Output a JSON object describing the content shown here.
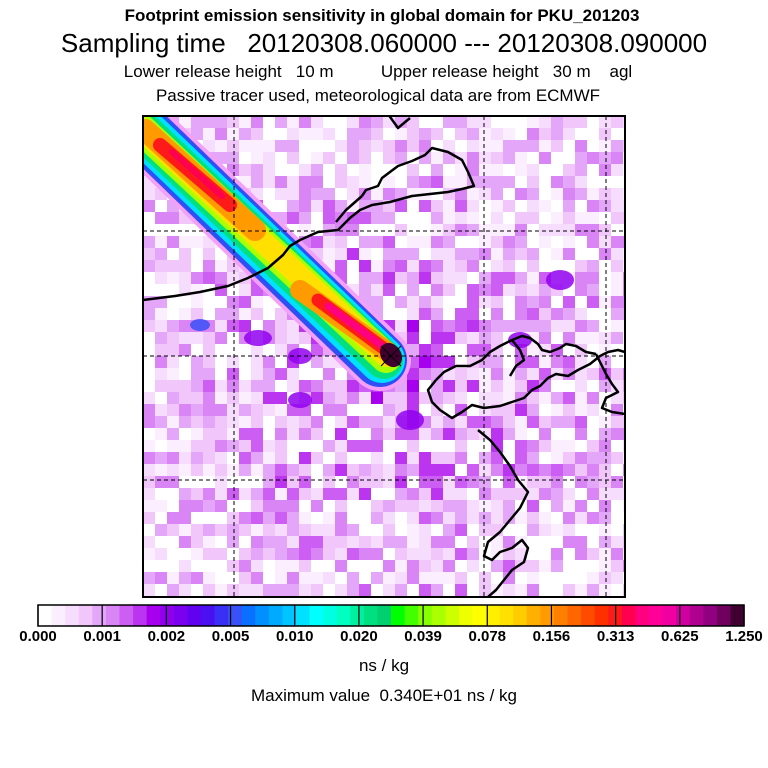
{
  "header": {
    "title": "Footprint emission sensitivity in global domain for PKU_201203",
    "sampling": "Sampling time   20120308.060000 --- 20120308.090000",
    "release": "Lower release height   10 m          Upper release height   30 m    agl",
    "tracer": "Passive tracer used, meteorological data are from ECMWF"
  },
  "chart_data": {
    "type": "heatmap",
    "title": "Footprint emission sensitivity in global domain for PKU_201203",
    "unit": "ns / kg",
    "max_value_text": "Maximum value  0.340E+01 ns / kg",
    "max_value": 3.4,
    "colorbar_ticks": [
      "0.000",
      "0.001",
      "0.002",
      "0.005",
      "0.010",
      "0.020",
      "0.039",
      "0.078",
      "0.156",
      "0.313",
      "0.625",
      "1.250"
    ],
    "colorbar_colors": [
      "#ffffff",
      "#fbeefe",
      "#f7ddfd",
      "#f0c6fb",
      "#e3a6f8",
      "#d985f5",
      "#cc5ef3",
      "#bb35f1",
      "#a600ee",
      "#9000ee",
      "#7a00ef",
      "#6200f0",
      "#4b10f2",
      "#3a30f5",
      "#3a50f8",
      "#0a70ff",
      "#0090ff",
      "#00aaff",
      "#00c4ff",
      "#00e0ff",
      "#00ffff",
      "#00ffe0",
      "#00ffc0",
      "#00f0a0",
      "#00e080",
      "#00d070",
      "#00ff00",
      "#44ff00",
      "#88ff00",
      "#aaff00",
      "#ccff00",
      "#eeff00",
      "#ffff00",
      "#fff000",
      "#ffe000",
      "#ffcc00",
      "#ffb000",
      "#ff9a00",
      "#ff8000",
      "#ff6600",
      "#ff4b00",
      "#ff3000",
      "#ff1a1a",
      "#ff0050",
      "#ff0080",
      "#ff0099",
      "#f000a0",
      "#d000a0",
      "#b00090",
      "#900080",
      "#700060",
      "#400030"
    ],
    "plume": {
      "description": "high sensitivity band from north-west to receptor",
      "peak_value": 1.25
    }
  }
}
